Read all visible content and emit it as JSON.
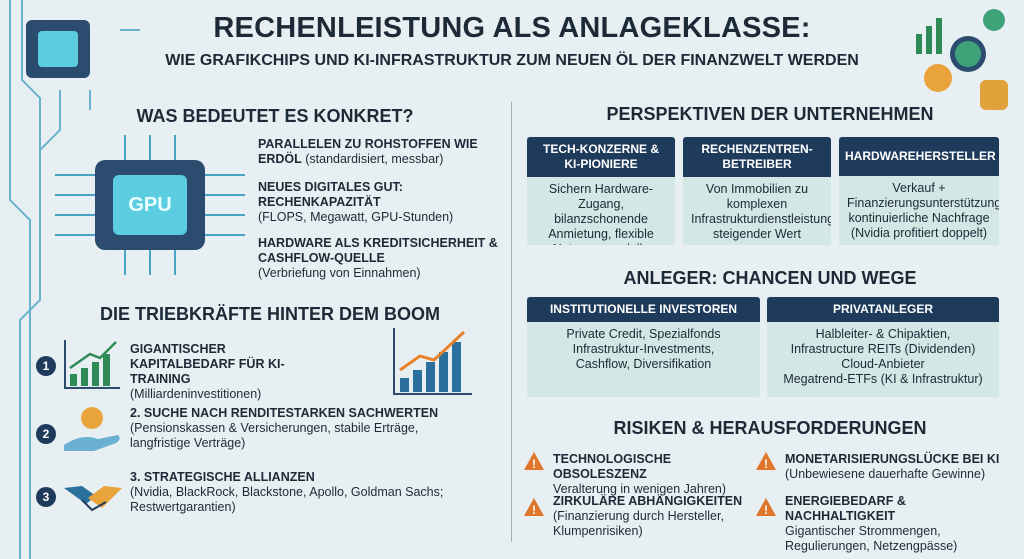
{
  "header": {
    "title": "RECHENLEISTUNG ALS ANLAGEKLASSE:",
    "subtitle": "WIE GRAFIKCHIPS UND KI-INFRASTRUKTUR ZUM NEUEN ÖL DER FINANZWELT WERDEN"
  },
  "definition": {
    "heading": "WAS BEDEUTET ES KONKRET?",
    "chip_label": "GPU",
    "items": [
      {
        "title": "PARALLELEN ZU ROHSTOFFEN WIE ERDÖL",
        "detail": "(standardisiert, messbar)"
      },
      {
        "title": "NEUES DIGITALES GUT: RECHENKAPAZITÄT",
        "detail": "(FLOPS, Megawatt, GPU-Stunden)"
      },
      {
        "title": "HARDWARE ALS KREDITSICHERHEIT & CASHFLOW-QUELLE",
        "detail": "(Verbriefung von Einnahmen)"
      }
    ]
  },
  "drivers": {
    "heading": "DIE TRIEBKRÄFTE HINTER DEM BOOM",
    "items": [
      {
        "number": "1",
        "title": "GIGANTISCHER KAPITALBEDARF FÜR KI-TRAINING",
        "detail": "(Milliardeninvestitionen)"
      },
      {
        "number": "2",
        "title": "2. SUCHE NACH RENDITESTARKEN SACHWERTEN",
        "detail": "(Pensionskassen & Versicherungen, stabile Erträge, langfristige Verträge)"
      },
      {
        "number": "3",
        "title": "3. STRATEGISCHE ALLIANZEN",
        "detail": "(Nvidia, BlackRock, Blackstone, Apollo, Goldman Sachs; Restwertgarantien)"
      }
    ]
  },
  "companies": {
    "heading": "PERSPEKTIVEN DER UNTERNEHMEN",
    "cards": [
      {
        "title": "TECH-KONZERNE & KI-PIONIERE",
        "body": "Sichern Hardware-Zugang, bilanzschonende Anmietung, flexible Nutzungsmodelle"
      },
      {
        "title": "RECHENZENTREN-BETREIBER",
        "body": "Von Immobilien zu komplexen Infrastrukturdienstleistungen, steigender Wert"
      },
      {
        "title": "HARDWAREHERSTELLER",
        "body": "Verkauf + Finanzierungsunterstützung, kontinuierliche Nachfrage (Nvidia profitiert doppelt)"
      }
    ]
  },
  "investors": {
    "heading": "ANLEGER: CHANCEN UND WEGE",
    "cards": [
      {
        "title": "INSTITUTIONELLE INVESTOREN",
        "lines": [
          "Private Credit, Spezialfonds",
          "Infrastruktur-Investments,",
          "Cashflow, Diversifikation"
        ]
      },
      {
        "title": "PRIVATANLEGER",
        "lines": [
          "Halbleiter- & Chipaktien,",
          "Infrastructure REITs (Dividenden)",
          "Cloud-Anbieter",
          "Megatrend-ETFs (KI & Infrastruktur)"
        ]
      }
    ]
  },
  "risks": {
    "heading": "RISIKEN & HERAUSFORDERUNGEN",
    "items": [
      {
        "title": "TECHNOLOGISCHE OBSOLESZENZ",
        "detail": "Veralterung in wenigen Jahren)"
      },
      {
        "title": "MONETARISIERUNGSLÜCKE BEI KI",
        "detail": "(Unbewiesene dauerhafte Gewinne)"
      },
      {
        "title": "ZIRKULÄRE ABHÄNGIGKEITEN",
        "detail": "(Finanzierung durch Hersteller, Klumpenrisiken)"
      },
      {
        "title": "ENERGIEBEDARF & NACHHALTIGKEIT",
        "detail": "Gigantischer Strommengen, Regulierungen, Netzengpässe)"
      }
    ]
  }
}
